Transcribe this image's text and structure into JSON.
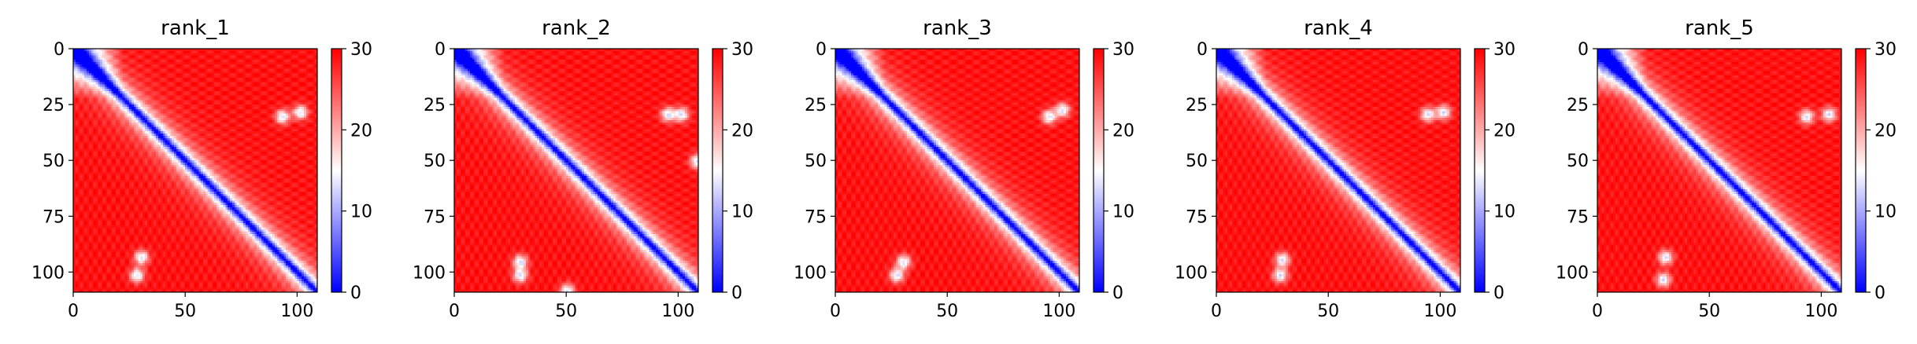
{
  "chart_data": [
    {
      "type": "heatmap",
      "title": "rank_1",
      "size": 109,
      "xticks": [
        0,
        50,
        100
      ],
      "yticks": [
        0,
        25,
        50,
        75,
        100
      ],
      "colorbar": {
        "min": 0,
        "max": 30,
        "ticks": [
          0,
          10,
          20,
          30
        ]
      },
      "colormap": "bwr",
      "blobs": [
        [
          30,
          93
        ],
        [
          95,
          30
        ],
        [
          112,
          20
        ],
        [
          28,
          101
        ]
      ]
    },
    {
      "type": "heatmap",
      "title": "rank_2",
      "size": 109,
      "xticks": [
        0,
        50,
        100
      ],
      "yticks": [
        0,
        25,
        50,
        75,
        100
      ],
      "colorbar": {
        "min": 0,
        "max": 30,
        "ticks": [
          0,
          10,
          20,
          30
        ]
      },
      "colormap": "bwr",
      "blobs": [
        [
          29,
          95
        ],
        [
          95,
          29
        ],
        [
          112,
          20
        ],
        [
          29,
          101
        ],
        [
          50,
          108
        ]
      ]
    },
    {
      "type": "heatmap",
      "title": "rank_3",
      "size": 109,
      "xticks": [
        0,
        50,
        100
      ],
      "yticks": [
        0,
        25,
        50,
        75,
        100
      ],
      "colorbar": {
        "min": 0,
        "max": 30,
        "ticks": [
          0,
          10,
          20,
          30
        ]
      },
      "colormap": "bwr",
      "blobs": [
        [
          30,
          95
        ],
        [
          95,
          30
        ],
        [
          112,
          20
        ],
        [
          27,
          101
        ]
      ]
    },
    {
      "type": "heatmap",
      "title": "rank_4",
      "size": 109,
      "xticks": [
        0,
        50,
        100
      ],
      "yticks": [
        0,
        25,
        50,
        75,
        100
      ],
      "colorbar": {
        "min": 0,
        "max": 30,
        "ticks": [
          0,
          10,
          20,
          30
        ]
      },
      "colormap": "bwr",
      "blobs": [
        [
          29,
          94
        ],
        [
          94,
          29
        ],
        [
          112,
          20
        ],
        [
          28,
          101
        ]
      ]
    },
    {
      "type": "heatmap",
      "title": "rank_5",
      "size": 109,
      "xticks": [
        0,
        50,
        100
      ],
      "yticks": [
        0,
        25,
        50,
        75,
        100
      ],
      "colorbar": {
        "min": 0,
        "max": 30,
        "ticks": [
          0,
          10,
          20,
          30
        ]
      },
      "colormap": "bwr",
      "blobs": [
        [
          30,
          93
        ],
        [
          93,
          30
        ],
        [
          112,
          20
        ],
        [
          29,
          103
        ]
      ]
    }
  ]
}
